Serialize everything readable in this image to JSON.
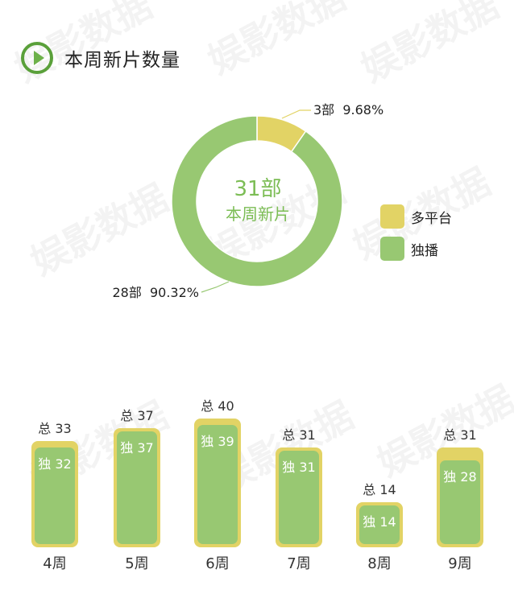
{
  "header": {
    "title": "本周新片数量",
    "icon": "play-circle-icon"
  },
  "watermark_text": "娱影数据",
  "colors": {
    "multi": "#e2d365",
    "exclusive": "#98c872",
    "accent": "#5aa03a"
  },
  "chart_data": [
    {
      "type": "pie",
      "variant": "donut",
      "center_value": "31部",
      "center_label": "本周新片",
      "slices": [
        {
          "name": "多平台",
          "value": 3,
          "label": "3部  9.68%",
          "color": "#e2d365"
        },
        {
          "name": "独播",
          "value": 28,
          "label": "28部  90.32%",
          "color": "#98c872"
        }
      ],
      "legend": {
        "position": "right",
        "entries": [
          "多平台",
          "独播"
        ]
      }
    },
    {
      "type": "bar",
      "variant": "overlay",
      "categories": [
        "4周",
        "5周",
        "6周",
        "7周",
        "8周",
        "9周"
      ],
      "series": [
        {
          "name": "总",
          "values": [
            33,
            37,
            40,
            31,
            14,
            31
          ],
          "color": "#e2d365"
        },
        {
          "name": "独",
          "values": [
            32,
            37,
            39,
            31,
            14,
            28
          ],
          "color": "#98c872"
        }
      ],
      "total_labels": [
        "总 33",
        "总 37",
        "总 40",
        "总 31",
        "总 14",
        "总 31"
      ],
      "exclusive_labels": [
        "独 32",
        "独 37",
        "独 39",
        "独 31",
        "独 14",
        "独 28"
      ]
    }
  ]
}
